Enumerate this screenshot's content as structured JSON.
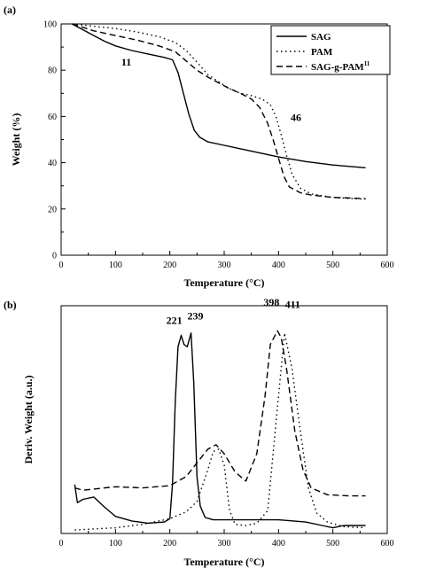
{
  "chart_data": [
    {
      "type": "line",
      "panel_label": "(a)",
      "xlabel": "Temperature (°C)",
      "ylabel": "Weight (%)",
      "xlim": [
        0,
        600
      ],
      "ylim": [
        0,
        100
      ],
      "xticks": [
        0,
        100,
        200,
        300,
        400,
        500,
        600
      ],
      "yticks": [
        0,
        20,
        40,
        60,
        80,
        100
      ],
      "grid": false,
      "legend_position": "top-right",
      "series": [
        {
          "name": "SAG",
          "style": "solid",
          "x": [
            20,
            40,
            60,
            80,
            100,
            130,
            160,
            190,
            205,
            215,
            225,
            235,
            245,
            255,
            270,
            300,
            350,
            400,
            450,
            500,
            560
          ],
          "y": [
            100,
            97.5,
            95,
            92.5,
            90.5,
            88.5,
            87,
            85.5,
            84.5,
            79,
            70,
            61,
            54,
            51,
            49,
            47.5,
            45,
            42.5,
            40.5,
            39,
            37.8
          ]
        },
        {
          "name": "PAM",
          "style": "dotted",
          "x": [
            20,
            60,
            100,
            140,
            180,
            210,
            230,
            250,
            270,
            290,
            310,
            330,
            350,
            370,
            385,
            395,
            405,
            415,
            425,
            440,
            460,
            500,
            560
          ],
          "y": [
            100,
            99,
            98,
            96.5,
            94.5,
            92,
            88.5,
            83.5,
            78,
            75,
            72,
            70,
            69,
            67.5,
            65,
            60,
            52,
            43,
            35,
            29,
            26.5,
            25,
            24.2
          ]
        },
        {
          "name": "SAG-g-PAM",
          "name_superscript": "11",
          "style": "dashed",
          "x": [
            20,
            60,
            100,
            140,
            180,
            210,
            230,
            250,
            270,
            290,
            310,
            330,
            350,
            365,
            380,
            390,
            400,
            410,
            420,
            440,
            460,
            500,
            560
          ],
          "y": [
            100,
            97,
            95,
            93,
            90.5,
            88,
            84,
            80,
            77,
            74.5,
            72,
            70,
            67.5,
            64,
            57,
            50,
            42,
            34,
            29.5,
            27,
            26,
            25,
            24.5
          ]
        }
      ],
      "annotations": [
        {
          "text": "11",
          "x": 120,
          "y": 82
        },
        {
          "text": "46",
          "x": 432,
          "y": 58
        }
      ]
    },
    {
      "type": "line",
      "panel_label": "(b)",
      "xlabel": "Temperature (°C)",
      "ylabel": "Deriv. Weight (a.u.)",
      "xlim": [
        0,
        600
      ],
      "ylim": [
        0,
        1
      ],
      "xticks": [
        0,
        100,
        200,
        300,
        400,
        500,
        600
      ],
      "yticks": [],
      "grid": false,
      "series": [
        {
          "name": "SAG",
          "style": "solid",
          "x": [
            25,
            30,
            40,
            60,
            80,
            100,
            130,
            160,
            190,
            200,
            205,
            210,
            215,
            221,
            226,
            232,
            239,
            244,
            250,
            256,
            265,
            280,
            310,
            350,
            400,
            450,
            480,
            500,
            520,
            560
          ],
          "y": [
            0.215,
            0.135,
            0.15,
            0.16,
            0.115,
            0.075,
            0.055,
            0.045,
            0.05,
            0.065,
            0.22,
            0.58,
            0.82,
            0.87,
            0.83,
            0.82,
            0.88,
            0.66,
            0.25,
            0.12,
            0.07,
            0.06,
            0.06,
            0.06,
            0.06,
            0.05,
            0.035,
            0.025,
            0.035,
            0.035
          ]
        },
        {
          "name": "PAM",
          "style": "dotted",
          "x": [
            25,
            60,
            100,
            150,
            200,
            230,
            250,
            270,
            280,
            290,
            300,
            310,
            320,
            340,
            360,
            380,
            395,
            411,
            425,
            440,
            455,
            470,
            490,
            520,
            560
          ],
          "y": [
            0.015,
            0.02,
            0.025,
            0.04,
            0.065,
            0.095,
            0.14,
            0.28,
            0.36,
            0.37,
            0.3,
            0.1,
            0.04,
            0.035,
            0.045,
            0.1,
            0.48,
            0.88,
            0.72,
            0.45,
            0.2,
            0.09,
            0.05,
            0.03,
            0.025
          ]
        },
        {
          "name": "SAG-g-PAM",
          "style": "dashed",
          "x": [
            25,
            40,
            60,
            100,
            150,
            200,
            230,
            250,
            270,
            285,
            300,
            320,
            340,
            360,
            375,
            385,
            398,
            405,
            415,
            430,
            445,
            460,
            490,
            530,
            560
          ],
          "y": [
            0.2,
            0.19,
            0.195,
            0.205,
            0.2,
            0.21,
            0.25,
            0.31,
            0.37,
            0.39,
            0.35,
            0.27,
            0.23,
            0.35,
            0.6,
            0.83,
            0.89,
            0.86,
            0.72,
            0.45,
            0.28,
            0.2,
            0.17,
            0.165,
            0.165
          ]
        }
      ],
      "annotations": [
        {
          "text": "221",
          "x": 208,
          "y": 0.92
        },
        {
          "text": "239",
          "x": 247,
          "y": 0.94
        },
        {
          "text": "398",
          "x": 387,
          "y": 1.0
        },
        {
          "text": "411",
          "x": 426,
          "y": 0.99
        }
      ]
    }
  ]
}
